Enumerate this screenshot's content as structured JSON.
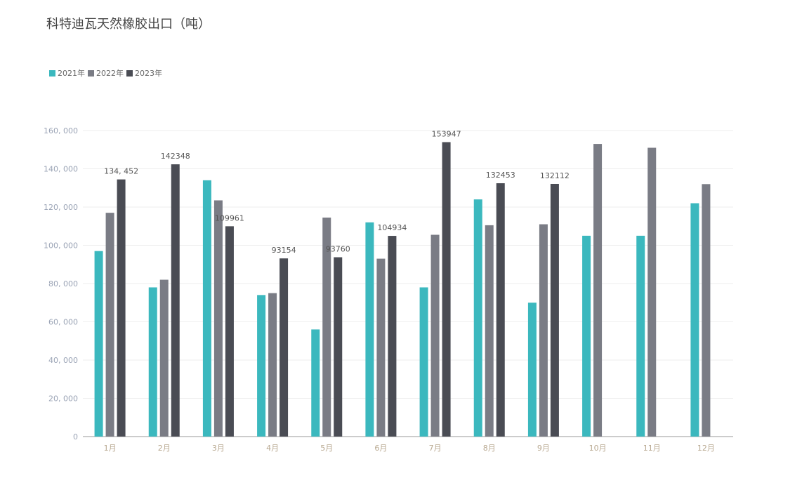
{
  "chart_data": {
    "type": "bar",
    "title": "科特迪瓦天然橡胶出口（吨）",
    "xlabel": "",
    "ylabel": "",
    "ylim": [
      0,
      160000
    ],
    "yticks": [
      "0",
      "20, 000",
      "40, 000",
      "60, 000",
      "80, 000",
      "100, 000",
      "120, 000",
      "140, 000",
      "160, 000"
    ],
    "ytick_values": [
      0,
      20000,
      40000,
      60000,
      80000,
      100000,
      120000,
      140000,
      160000
    ],
    "grid": true,
    "legend_position": "top-left",
    "categories": [
      "1月",
      "2月",
      "3月",
      "4月",
      "5月",
      "6月",
      "7月",
      "8月",
      "9月",
      "10月",
      "11月",
      "12月"
    ],
    "series": [
      {
        "name": "2021年",
        "color": "#3bb8be",
        "values": [
          97000,
          78000,
          134000,
          74000,
          56000,
          112000,
          78000,
          124000,
          70000,
          105000,
          105000,
          122000
        ]
      },
      {
        "name": "2022年",
        "color": "#7a7c85",
        "values": [
          117000,
          82000,
          123500,
          75000,
          114500,
          93000,
          105500,
          110500,
          111000,
          153000,
          151000,
          132000
        ]
      },
      {
        "name": "2023年",
        "color": "#4a4c54",
        "values": [
          134452,
          142348,
          109961,
          93154,
          93760,
          104934,
          153947,
          132453,
          132112,
          null,
          null,
          null
        ]
      }
    ],
    "data_labels_2023": [
      "134, 452",
      "142348",
      "109961",
      "93154",
      "93760",
      "104934",
      "153947",
      "132453",
      "132112"
    ]
  }
}
